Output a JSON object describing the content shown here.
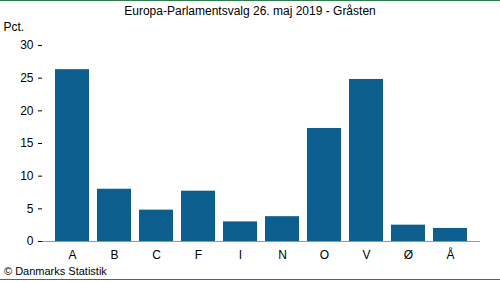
{
  "chart_data": {
    "type": "bar",
    "title": "Europa-Parlamentsvalg 26. maj 2019 - Gråsten",
    "y_label": "Pct.",
    "caption": "© Danmarks Statistik",
    "categories": [
      "A",
      "B",
      "C",
      "F",
      "I",
      "N",
      "O",
      "V",
      "Ø",
      "Å"
    ],
    "values": [
      26.3,
      8.0,
      4.8,
      7.7,
      3.0,
      3.8,
      17.3,
      24.8,
      2.5,
      2.0
    ],
    "color": "#0b5e8e",
    "ylim": [
      0,
      30
    ],
    "yticks": [
      0,
      5,
      10,
      15,
      20,
      25,
      30
    ],
    "grid": false
  }
}
